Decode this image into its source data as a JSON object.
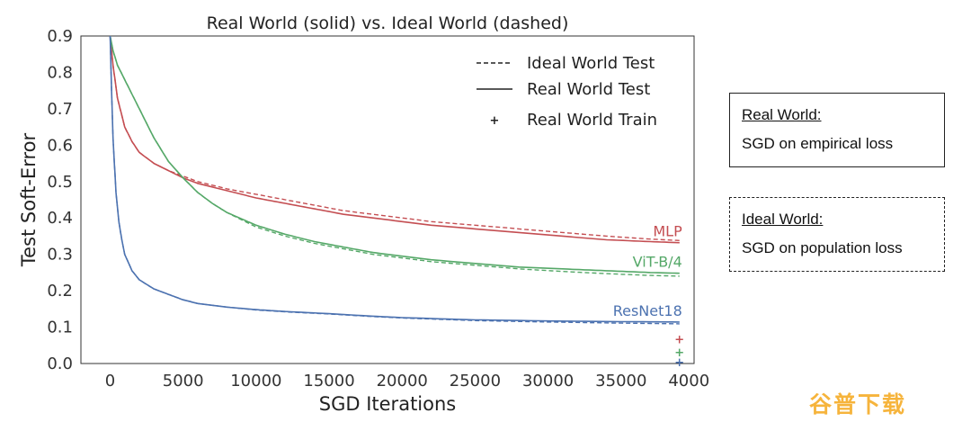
{
  "chart_data": {
    "type": "line",
    "title": "Real World (solid) vs. Ideal World (dashed)",
    "xlabel": "SGD Iterations",
    "ylabel": "Test Soft-Error",
    "xlim": [
      -2000,
      40000
    ],
    "ylim": [
      0,
      0.9
    ],
    "xticks": [
      0,
      5000,
      10000,
      15000,
      20000,
      25000,
      30000,
      35000,
      40000
    ],
    "yticks": [
      0.0,
      0.1,
      0.2,
      0.3,
      0.4,
      0.5,
      0.6,
      0.7,
      0.8,
      0.9
    ],
    "grid": false,
    "legend": {
      "placement": "top-right",
      "entries": [
        {
          "label": "Ideal World Test",
          "style": "dashed"
        },
        {
          "label": "Real World Test",
          "style": "solid"
        },
        {
          "label": "Real World Train",
          "style": "marker"
        }
      ]
    },
    "series": [
      {
        "name": "MLP",
        "color": "#c44e52",
        "real_test": {
          "x": [
            0,
            200,
            500,
            1000,
            1500,
            2000,
            3000,
            4000,
            5000,
            6000,
            7000,
            8000,
            10000,
            12000,
            14000,
            16000,
            18000,
            20000,
            22000,
            25000,
            28000,
            31000,
            34000,
            37000,
            39000
          ],
          "y": [
            0.9,
            0.82,
            0.73,
            0.65,
            0.61,
            0.58,
            0.55,
            0.53,
            0.51,
            0.495,
            0.485,
            0.475,
            0.455,
            0.44,
            0.425,
            0.41,
            0.4,
            0.39,
            0.38,
            0.37,
            0.36,
            0.35,
            0.34,
            0.335,
            0.332
          ]
        },
        "ideal_test": {
          "x": [
            0,
            200,
            500,
            1000,
            1500,
            2000,
            3000,
            4000,
            5000,
            6000,
            7000,
            8000,
            10000,
            12000,
            14000,
            16000,
            18000,
            20000,
            22000,
            25000,
            28000,
            31000,
            34000,
            37000,
            39000
          ],
          "y": [
            0.9,
            0.82,
            0.73,
            0.65,
            0.61,
            0.58,
            0.55,
            0.53,
            0.515,
            0.5,
            0.49,
            0.48,
            0.465,
            0.45,
            0.435,
            0.42,
            0.41,
            0.4,
            0.39,
            0.38,
            0.37,
            0.36,
            0.35,
            0.342,
            0.338
          ]
        },
        "real_train": {
          "x": 39000,
          "y": 0.065
        }
      },
      {
        "name": "ViT-B/4",
        "color": "#55a868",
        "real_test": {
          "x": [
            0,
            200,
            500,
            1000,
            1500,
            2000,
            3000,
            4000,
            5000,
            6000,
            7000,
            8000,
            10000,
            12000,
            14000,
            16000,
            18000,
            20000,
            22000,
            25000,
            28000,
            31000,
            34000,
            37000,
            39000
          ],
          "y": [
            0.9,
            0.86,
            0.82,
            0.78,
            0.74,
            0.7,
            0.62,
            0.555,
            0.51,
            0.47,
            0.44,
            0.415,
            0.38,
            0.355,
            0.335,
            0.32,
            0.305,
            0.295,
            0.285,
            0.275,
            0.265,
            0.26,
            0.255,
            0.25,
            0.248
          ]
        },
        "ideal_test": {
          "x": [
            0,
            200,
            500,
            1000,
            1500,
            2000,
            3000,
            4000,
            5000,
            6000,
            7000,
            8000,
            10000,
            12000,
            14000,
            16000,
            18000,
            20000,
            22000,
            25000,
            28000,
            31000,
            34000,
            37000,
            39000
          ],
          "y": [
            0.9,
            0.86,
            0.82,
            0.78,
            0.74,
            0.7,
            0.62,
            0.555,
            0.51,
            0.47,
            0.44,
            0.415,
            0.375,
            0.35,
            0.33,
            0.315,
            0.3,
            0.29,
            0.28,
            0.27,
            0.26,
            0.253,
            0.247,
            0.242,
            0.24
          ]
        },
        "real_train": {
          "x": 39000,
          "y": 0.03
        }
      },
      {
        "name": "ResNet18",
        "color": "#4c72b0",
        "real_test": {
          "x": [
            0,
            100,
            200,
            400,
            600,
            800,
            1000,
            1500,
            2000,
            3000,
            4000,
            5000,
            6000,
            8000,
            10000,
            12000,
            15000,
            18000,
            20000,
            25000,
            30000,
            35000,
            39000
          ],
          "y": [
            0.9,
            0.75,
            0.62,
            0.47,
            0.39,
            0.34,
            0.3,
            0.255,
            0.23,
            0.205,
            0.19,
            0.175,
            0.165,
            0.155,
            0.148,
            0.143,
            0.137,
            0.13,
            0.126,
            0.12,
            0.117,
            0.115,
            0.114
          ]
        },
        "ideal_test": {
          "x": [
            0,
            100,
            200,
            400,
            600,
            800,
            1000,
            1500,
            2000,
            3000,
            4000,
            5000,
            6000,
            8000,
            10000,
            12000,
            15000,
            18000,
            20000,
            25000,
            30000,
            35000,
            39000
          ],
          "y": [
            0.9,
            0.75,
            0.62,
            0.47,
            0.39,
            0.34,
            0.3,
            0.255,
            0.23,
            0.205,
            0.19,
            0.175,
            0.165,
            0.155,
            0.147,
            0.142,
            0.136,
            0.129,
            0.125,
            0.118,
            0.114,
            0.111,
            0.109
          ]
        },
        "real_train": {
          "x": 39000,
          "y": 0.002
        }
      }
    ]
  },
  "definitions": {
    "real": {
      "heading": "Real World:",
      "body": "SGD on empirical loss"
    },
    "ideal": {
      "heading": "Ideal World:",
      "body": "SGD on population loss"
    }
  },
  "watermark": "谷普下载"
}
